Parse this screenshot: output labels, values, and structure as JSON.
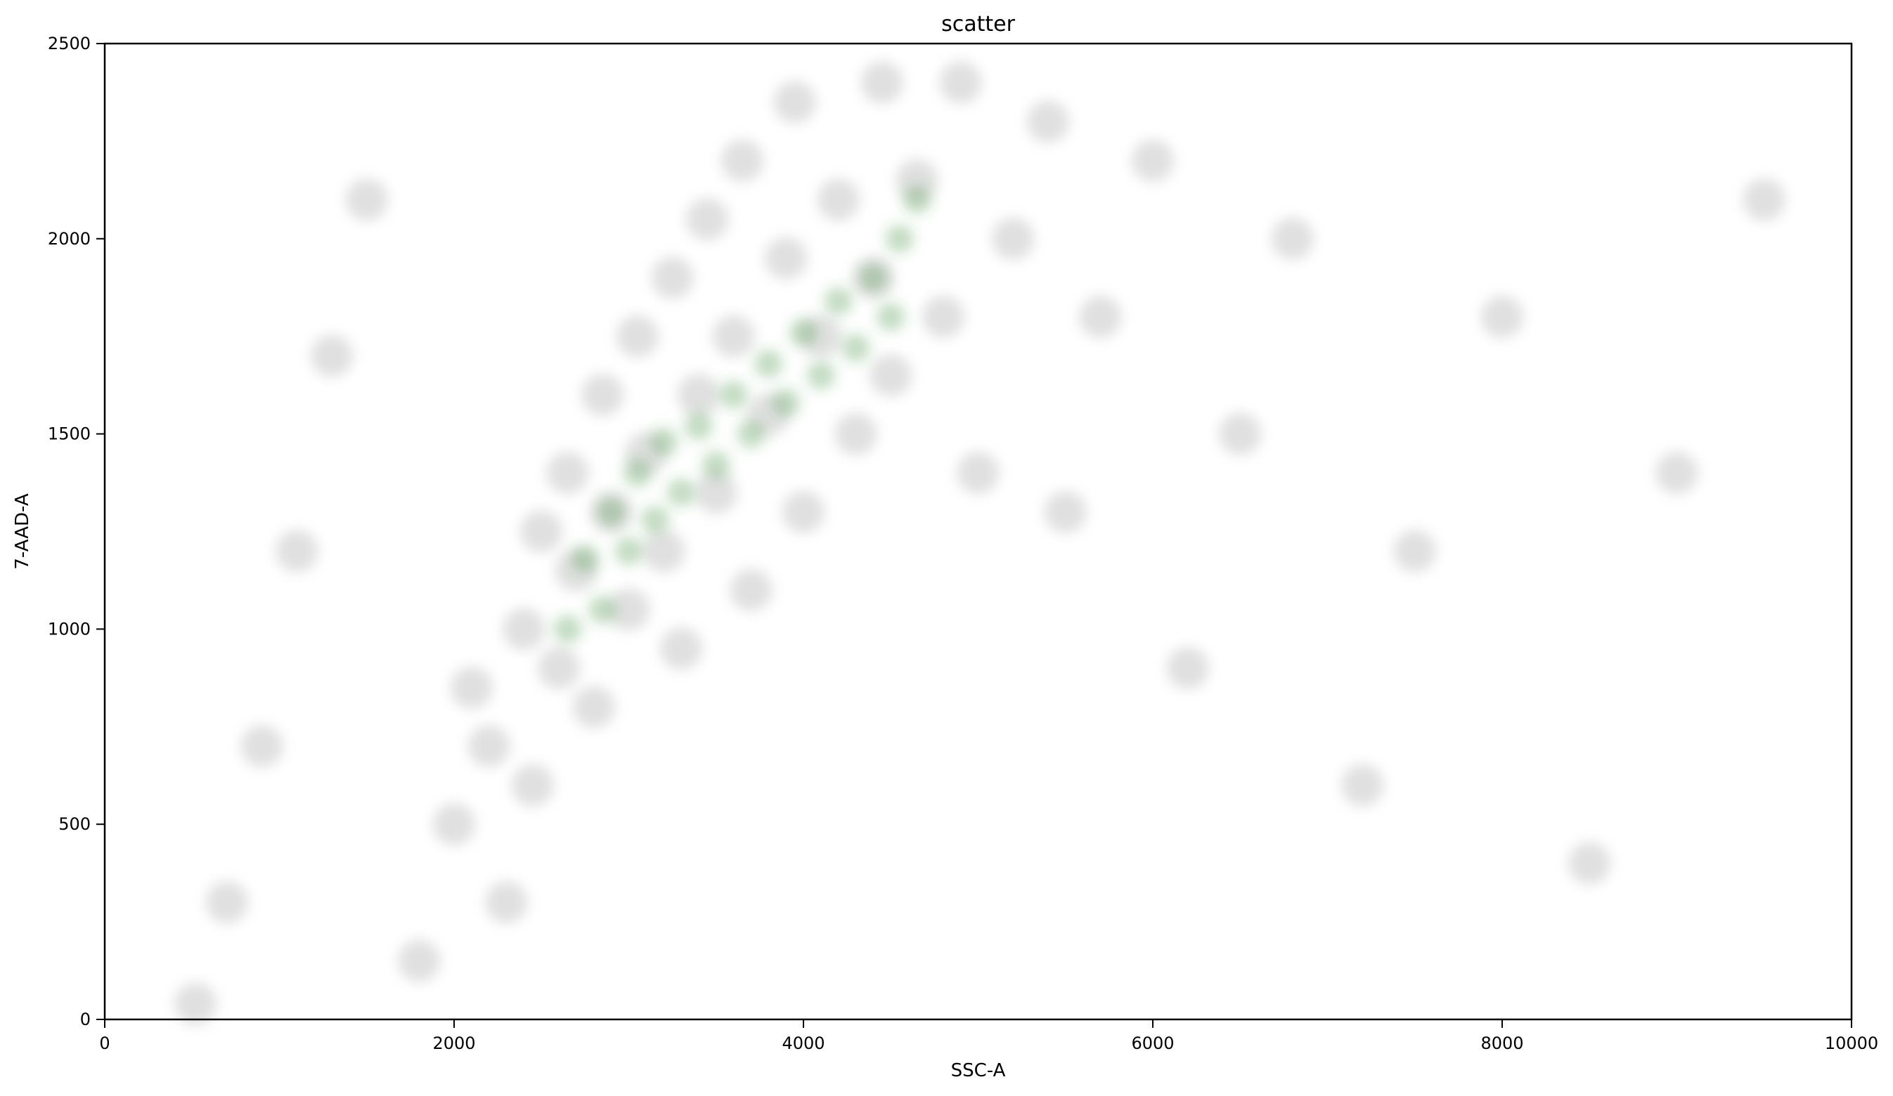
{
  "chart_data": {
    "type": "scatter",
    "title": "scatter",
    "xlabel": "SSC-A",
    "ylabel": "7-AAD-A",
    "xlim": [
      0,
      10000
    ],
    "ylim": [
      0,
      2500
    ],
    "xticks": [
      0,
      2000,
      4000,
      6000,
      8000,
      10000
    ],
    "yticks": [
      0,
      500,
      1000,
      1500,
      2000,
      2500
    ],
    "grid": false,
    "legend": "none",
    "series": [
      {
        "color": "#000000",
        "points": [
          {
            "x": 520,
            "y": 40
          },
          {
            "x": 700,
            "y": 300
          },
          {
            "x": 900,
            "y": 700
          },
          {
            "x": 1100,
            "y": 1200
          },
          {
            "x": 1300,
            "y": 1700
          },
          {
            "x": 1500,
            "y": 2100
          },
          {
            "x": 1800,
            "y": 150
          },
          {
            "x": 2000,
            "y": 500
          },
          {
            "x": 2100,
            "y": 850
          },
          {
            "x": 2200,
            "y": 700
          },
          {
            "x": 2300,
            "y": 300
          },
          {
            "x": 2400,
            "y": 1000
          },
          {
            "x": 2450,
            "y": 600
          },
          {
            "x": 2500,
            "y": 1250
          },
          {
            "x": 2600,
            "y": 900
          },
          {
            "x": 2650,
            "y": 1400
          },
          {
            "x": 2700,
            "y": 1150
          },
          {
            "x": 2800,
            "y": 800
          },
          {
            "x": 2850,
            "y": 1600
          },
          {
            "x": 2900,
            "y": 1300
          },
          {
            "x": 3000,
            "y": 1050
          },
          {
            "x": 3050,
            "y": 1750
          },
          {
            "x": 3100,
            "y": 1450
          },
          {
            "x": 3200,
            "y": 1200
          },
          {
            "x": 3250,
            "y": 1900
          },
          {
            "x": 3300,
            "y": 950
          },
          {
            "x": 3400,
            "y": 1600
          },
          {
            "x": 3450,
            "y": 2050
          },
          {
            "x": 3500,
            "y": 1350
          },
          {
            "x": 3600,
            "y": 1750
          },
          {
            "x": 3650,
            "y": 2200
          },
          {
            "x": 3700,
            "y": 1100
          },
          {
            "x": 3800,
            "y": 1550
          },
          {
            "x": 3900,
            "y": 1950
          },
          {
            "x": 3950,
            "y": 2350
          },
          {
            "x": 4000,
            "y": 1300
          },
          {
            "x": 4100,
            "y": 1750
          },
          {
            "x": 4200,
            "y": 2100
          },
          {
            "x": 4300,
            "y": 1500
          },
          {
            "x": 4400,
            "y": 1900
          },
          {
            "x": 4450,
            "y": 2400
          },
          {
            "x": 4500,
            "y": 1650
          },
          {
            "x": 4650,
            "y": 2150
          },
          {
            "x": 4800,
            "y": 1800
          },
          {
            "x": 4900,
            "y": 2400
          },
          {
            "x": 5000,
            "y": 1400
          },
          {
            "x": 5200,
            "y": 2000
          },
          {
            "x": 5400,
            "y": 2300
          },
          {
            "x": 5500,
            "y": 1300
          },
          {
            "x": 5700,
            "y": 1800
          },
          {
            "x": 6000,
            "y": 2200
          },
          {
            "x": 6200,
            "y": 900
          },
          {
            "x": 6500,
            "y": 1500
          },
          {
            "x": 6800,
            "y": 2000
          },
          {
            "x": 7200,
            "y": 600
          },
          {
            "x": 7500,
            "y": 1200
          },
          {
            "x": 8000,
            "y": 1800
          },
          {
            "x": 8500,
            "y": 400
          },
          {
            "x": 9000,
            "y": 1400
          },
          {
            "x": 9500,
            "y": 2100
          }
        ]
      },
      {
        "color": "#3a8a3a",
        "points": [
          {
            "x": 2650,
            "y": 1000
          },
          {
            "x": 2750,
            "y": 1180
          },
          {
            "x": 2850,
            "y": 1050
          },
          {
            "x": 2900,
            "y": 1300
          },
          {
            "x": 3000,
            "y": 1200
          },
          {
            "x": 3050,
            "y": 1400
          },
          {
            "x": 3150,
            "y": 1280
          },
          {
            "x": 3200,
            "y": 1480
          },
          {
            "x": 3300,
            "y": 1350
          },
          {
            "x": 3400,
            "y": 1520
          },
          {
            "x": 3500,
            "y": 1420
          },
          {
            "x": 3600,
            "y": 1600
          },
          {
            "x": 3700,
            "y": 1500
          },
          {
            "x": 3800,
            "y": 1680
          },
          {
            "x": 3900,
            "y": 1580
          },
          {
            "x": 4000,
            "y": 1760
          },
          {
            "x": 4100,
            "y": 1650
          },
          {
            "x": 4200,
            "y": 1840
          },
          {
            "x": 4300,
            "y": 1720
          },
          {
            "x": 4400,
            "y": 1900
          },
          {
            "x": 4500,
            "y": 1800
          },
          {
            "x": 4550,
            "y": 2000
          },
          {
            "x": 4650,
            "y": 2100
          }
        ]
      }
    ]
  }
}
